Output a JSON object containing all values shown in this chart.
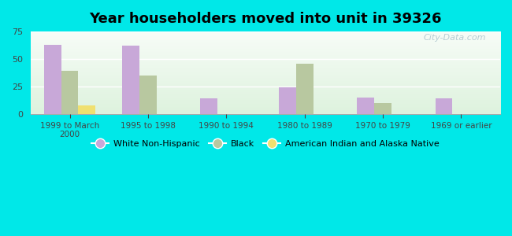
{
  "title": "Year householders moved into unit in 39326",
  "categories": [
    "1999 to March\n2000",
    "1995 to 1998",
    "1990 to 1994",
    "1980 to 1989",
    "1970 to 1979",
    "1969 or earlier"
  ],
  "white_non_hispanic": [
    63,
    62,
    14,
    24,
    15,
    14
  ],
  "black": [
    39,
    35,
    0,
    46,
    10,
    0
  ],
  "american_indian": [
    8,
    0,
    0,
    0,
    0,
    0
  ],
  "white_color": "#c8a8d8",
  "black_color": "#b8c8a0",
  "american_indian_color": "#f0e070",
  "bg_color": "#00e8e8",
  "ylim": [
    0,
    75
  ],
  "yticks": [
    0,
    25,
    50,
    75
  ],
  "bar_width": 0.22,
  "watermark": "City-Data.com"
}
